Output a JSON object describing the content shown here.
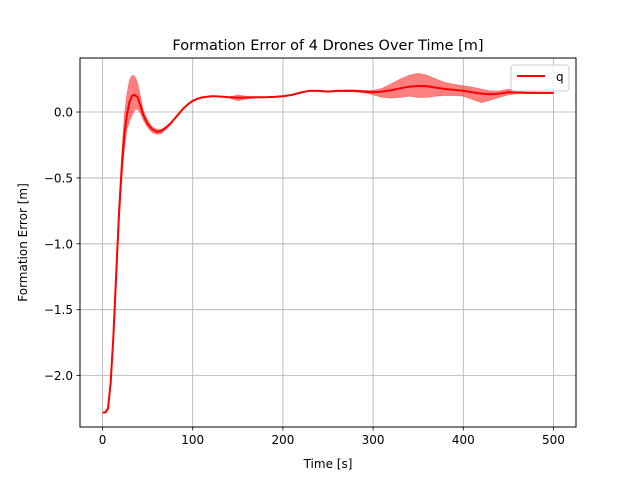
{
  "colors": {
    "line": "#ff0000",
    "band": "#ff0000",
    "grid": "#b0b0b0",
    "axes": "#000000",
    "background": "#ffffff"
  },
  "chart_data": {
    "type": "line",
    "title": "Formation Error of 4 Drones Over Time [m]",
    "xlabel": "Time [s]",
    "ylabel": "Formation Error [m]",
    "xlim": [
      -25,
      525
    ],
    "ylim": [
      -2.39,
      0.41
    ],
    "xticks": [
      0,
      100,
      200,
      300,
      400,
      500
    ],
    "yticks": [
      -2.0,
      -1.5,
      -1.0,
      -0.5,
      0.0
    ],
    "xtick_labels": [
      "0",
      "100",
      "200",
      "300",
      "400",
      "500"
    ],
    "ytick_labels": [
      "−2.0",
      "−1.5",
      "−1.0",
      "−0.5",
      "0.0"
    ],
    "grid": true,
    "legend": {
      "position": "top-right",
      "entries": [
        "q"
      ]
    },
    "series": [
      {
        "name": "q",
        "x": [
          0,
          3,
          6,
          9,
          12,
          15,
          18,
          21,
          24,
          27,
          30,
          33,
          36,
          39,
          42,
          45,
          50,
          55,
          60,
          65,
          70,
          75,
          80,
          85,
          90,
          95,
          100,
          105,
          110,
          115,
          120,
          125,
          130,
          140,
          150,
          160,
          170,
          180,
          190,
          200,
          210,
          220,
          230,
          240,
          250,
          260,
          270,
          280,
          290,
          300,
          310,
          320,
          330,
          340,
          350,
          360,
          370,
          380,
          390,
          400,
          410,
          420,
          430,
          440,
          450,
          460,
          470,
          480,
          490,
          500
        ],
        "y": [
          -2.28,
          -2.28,
          -2.25,
          -2.05,
          -1.7,
          -1.25,
          -0.8,
          -0.45,
          -0.18,
          -0.02,
          0.08,
          0.125,
          0.13,
          0.11,
          0.05,
          -0.02,
          -0.09,
          -0.13,
          -0.15,
          -0.145,
          -0.12,
          -0.09,
          -0.05,
          -0.01,
          0.03,
          0.06,
          0.085,
          0.1,
          0.11,
          0.115,
          0.12,
          0.12,
          0.118,
          0.112,
          0.108,
          0.11,
          0.112,
          0.112,
          0.115,
          0.12,
          0.13,
          0.148,
          0.162,
          0.16,
          0.155,
          0.16,
          0.162,
          0.16,
          0.155,
          0.15,
          0.155,
          0.165,
          0.18,
          0.192,
          0.198,
          0.195,
          0.185,
          0.175,
          0.168,
          0.16,
          0.15,
          0.14,
          0.135,
          0.14,
          0.15,
          0.148,
          0.145,
          0.145,
          0.145,
          0.145
        ],
        "upper": [
          -2.28,
          -2.28,
          -2.25,
          -2.02,
          -1.65,
          -1.18,
          -0.7,
          -0.33,
          -0.03,
          0.14,
          0.25,
          0.28,
          0.27,
          0.22,
          0.12,
          0.02,
          -0.06,
          -0.11,
          -0.13,
          -0.13,
          -0.11,
          -0.08,
          -0.045,
          -0.005,
          0.035,
          0.065,
          0.09,
          0.105,
          0.113,
          0.118,
          0.122,
          0.122,
          0.12,
          0.115,
          0.13,
          0.12,
          0.118,
          0.116,
          0.118,
          0.123,
          0.135,
          0.152,
          0.165,
          0.165,
          0.16,
          0.165,
          0.168,
          0.168,
          0.165,
          0.165,
          0.18,
          0.215,
          0.25,
          0.28,
          0.295,
          0.28,
          0.25,
          0.225,
          0.21,
          0.2,
          0.19,
          0.175,
          0.16,
          0.16,
          0.175,
          0.16,
          0.152,
          0.15,
          0.15,
          0.15
        ],
        "lower": [
          -2.28,
          -2.28,
          -2.25,
          -2.08,
          -1.75,
          -1.32,
          -0.9,
          -0.55,
          -0.3,
          -0.14,
          -0.07,
          -0.02,
          0.02,
          0.02,
          -0.01,
          -0.06,
          -0.12,
          -0.155,
          -0.17,
          -0.165,
          -0.135,
          -0.1,
          -0.055,
          -0.015,
          0.025,
          0.055,
          0.08,
          0.095,
          0.107,
          0.112,
          0.117,
          0.117,
          0.115,
          0.108,
          0.085,
          0.1,
          0.106,
          0.108,
          0.112,
          0.117,
          0.125,
          0.144,
          0.158,
          0.155,
          0.15,
          0.155,
          0.156,
          0.152,
          0.145,
          0.13,
          0.11,
          0.105,
          0.11,
          0.12,
          0.11,
          0.11,
          0.12,
          0.125,
          0.125,
          0.12,
          0.095,
          0.07,
          0.09,
          0.11,
          0.13,
          0.138,
          0.14,
          0.14,
          0.14,
          0.14
        ]
      }
    ]
  }
}
